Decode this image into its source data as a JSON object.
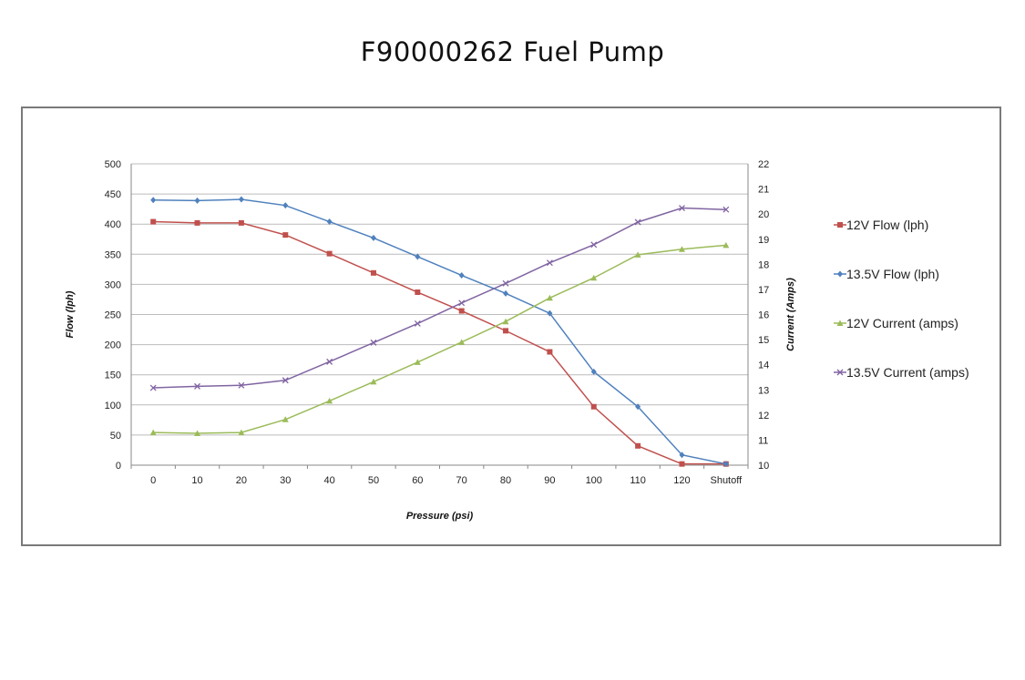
{
  "title": "F90000262 Fuel Pump",
  "chart_data": {
    "type": "line",
    "title": "F90000262 Fuel Pump",
    "xlabel": "Pressure (psi)",
    "ylabel": "Flow  (lph)",
    "y2label": "Current (Amps)",
    "categories": [
      "0",
      "10",
      "20",
      "30",
      "40",
      "50",
      "60",
      "70",
      "80",
      "90",
      "100",
      "110",
      "120",
      "Shutoff"
    ],
    "ylim": [
      0,
      500
    ],
    "y2lim": [
      10,
      22
    ],
    "yticks": [
      0,
      50,
      100,
      150,
      200,
      250,
      300,
      350,
      400,
      450,
      500
    ],
    "y2ticks": [
      10,
      11,
      12,
      13,
      14,
      15,
      16,
      17,
      18,
      19,
      20,
      21,
      22
    ],
    "grid": true,
    "legend": "right",
    "series": [
      {
        "name": "12V Flow (lph)",
        "axis": "left",
        "color": "#c0504d",
        "marker": "square",
        "values": [
          404,
          402,
          402,
          382,
          351,
          319,
          287,
          256,
          223,
          188,
          97,
          32,
          2,
          2
        ]
      },
      {
        "name": "13.5V Flow (lph)",
        "axis": "left",
        "color": "#4f81bd",
        "marker": "diamond",
        "values": [
          440,
          439,
          441,
          431,
          404,
          377,
          346,
          315,
          285,
          252,
          155,
          97,
          17,
          2
        ]
      },
      {
        "name": "12V Current (amps)",
        "axis": "right",
        "color": "#9bbb59",
        "marker": "triangle",
        "values": [
          11.3,
          11.27,
          11.3,
          11.82,
          12.56,
          13.32,
          14.1,
          14.9,
          15.72,
          16.66,
          17.46,
          18.38,
          18.6,
          18.76
        ]
      },
      {
        "name": "13.5V Current (amps)",
        "axis": "right",
        "color": "#8064a2",
        "marker": "x",
        "values": [
          13.08,
          13.14,
          13.18,
          13.38,
          14.12,
          14.88,
          15.64,
          16.46,
          17.24,
          18.06,
          18.78,
          19.68,
          20.24,
          20.18
        ]
      }
    ]
  }
}
